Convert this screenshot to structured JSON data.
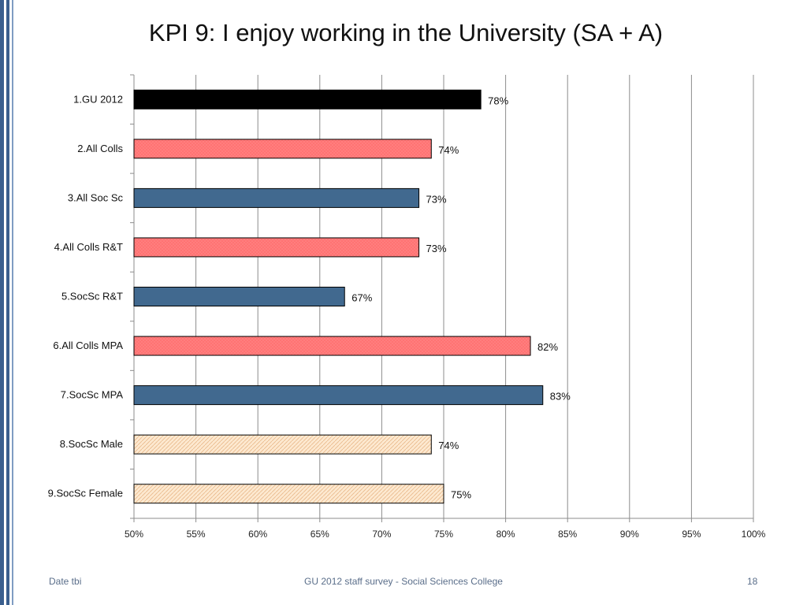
{
  "slide": {
    "title": "KPI 9: I enjoy working in the University (SA + A)",
    "footer_left": "Date tbi",
    "footer_center": "GU 2012 staff survey -  Social Sciences College",
    "page_number": "18"
  },
  "colors": {
    "accent_bar": "#3b5f8e",
    "gu": "#000000",
    "colleges": "#ff8080",
    "socsc": "#41698f",
    "gender": "#fde9d0"
  },
  "chart_data": {
    "type": "bar",
    "orientation": "horizontal",
    "title": "",
    "categories": [
      "1.GU 2012",
      "2.All Colls",
      "3.All Soc Sc",
      "4.All Colls R&T",
      "5.SocSc R&T",
      "6.All Colls MPA",
      "7.SocSc MPA",
      "8.SocSc Male",
      "9.SocSc Female"
    ],
    "values": [
      78,
      74,
      73,
      73,
      67,
      82,
      83,
      74,
      75
    ],
    "value_labels": [
      "78%",
      "74%",
      "73%",
      "73%",
      "67%",
      "82%",
      "83%",
      "74%",
      "75%"
    ],
    "bar_colors": [
      "#000000",
      "#ff8080",
      "#41698f",
      "#ff8080",
      "#41698f",
      "#ff8080",
      "#41698f",
      "#fde9d0",
      "#fde9d0"
    ],
    "bar_patterns": [
      "solid",
      "crosshatch",
      "solid",
      "crosshatch",
      "solid",
      "crosshatch",
      "solid",
      "diagonal",
      "diagonal"
    ],
    "xlim": [
      50,
      100
    ],
    "x_ticks": [
      50,
      55,
      60,
      65,
      70,
      75,
      80,
      85,
      90,
      95,
      100
    ],
    "x_tick_labels": [
      "50%",
      "55%",
      "60%",
      "65%",
      "70%",
      "75%",
      "80%",
      "85%",
      "90%",
      "95%",
      "100%"
    ],
    "grid": true,
    "legend": "none"
  }
}
